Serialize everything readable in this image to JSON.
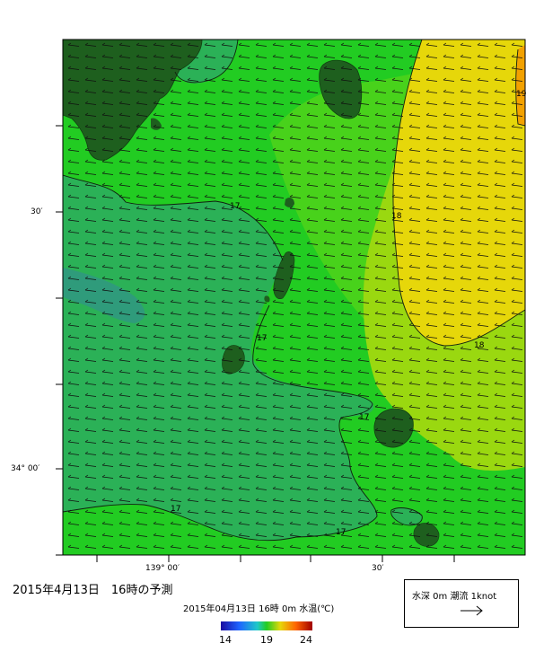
{
  "map": {
    "title": "2015年4月13日　16時の予測",
    "subtitle": "2015年04月13日 16時 0m 水温(℃)",
    "lat_labels": [
      "30′",
      "34° 00′"
    ],
    "lon_labels": [
      "139° 00′",
      "30′"
    ],
    "contour_labels": [
      "17",
      "17",
      "17",
      "17",
      "17",
      "18",
      "18",
      "19"
    ],
    "colors": {
      "land": "#1e5f1e",
      "t16": "#2f9b7b",
      "t17": "#2bb157",
      "t18": "#22cc22",
      "t18_5": "#9ad810",
      "t19": "#e6d70a"
    }
  },
  "legend": {
    "label": "水深 0m  潮流  1knot",
    "arrow_icon": "right-arrow"
  },
  "colorbar": {
    "ticks": [
      "14",
      "19",
      "24"
    ],
    "range": [
      14,
      24
    ]
  }
}
